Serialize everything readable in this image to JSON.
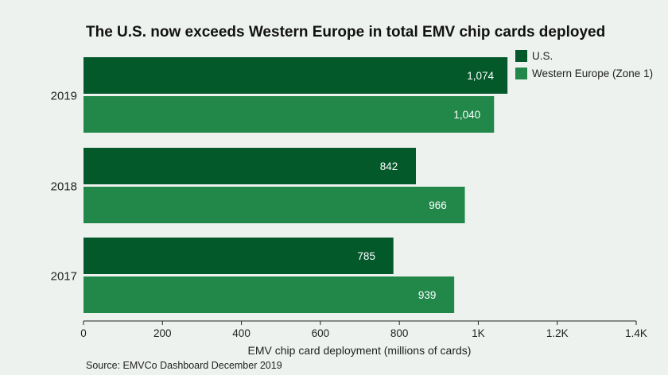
{
  "title": "The U.S. now exceeds Western Europe in total EMV chip cards deployed",
  "source": "Source: EMVCo Dashboard December 2019",
  "colors": {
    "us": "#03592a",
    "we": "#21884a",
    "background": "#eef2ef"
  },
  "chart_data": {
    "type": "bar",
    "orientation": "horizontal",
    "title": "The U.S. now exceeds Western Europe in total EMV chip cards deployed",
    "xlabel": "EMV chip card deployment (millions of cards)",
    "ylabel": "",
    "categories": [
      "2019",
      "2018",
      "2017"
    ],
    "series": [
      {
        "name": "U.S.",
        "values": [
          1074,
          842,
          785
        ],
        "labels": [
          "1,074",
          "842",
          "785"
        ]
      },
      {
        "name": "Western Europe (Zone 1)",
        "values": [
          1040,
          966,
          939
        ],
        "labels": [
          "1,040",
          "966",
          "939"
        ]
      }
    ],
    "xlim": [
      0,
      1400
    ],
    "xticks": [
      0,
      200,
      400,
      600,
      800,
      1000,
      1200,
      1400
    ],
    "xtick_labels": [
      "0",
      "200",
      "400",
      "600",
      "800",
      "1K",
      "1.2K",
      "1.4K"
    ],
    "legend_position": "top-right",
    "grid": false
  }
}
